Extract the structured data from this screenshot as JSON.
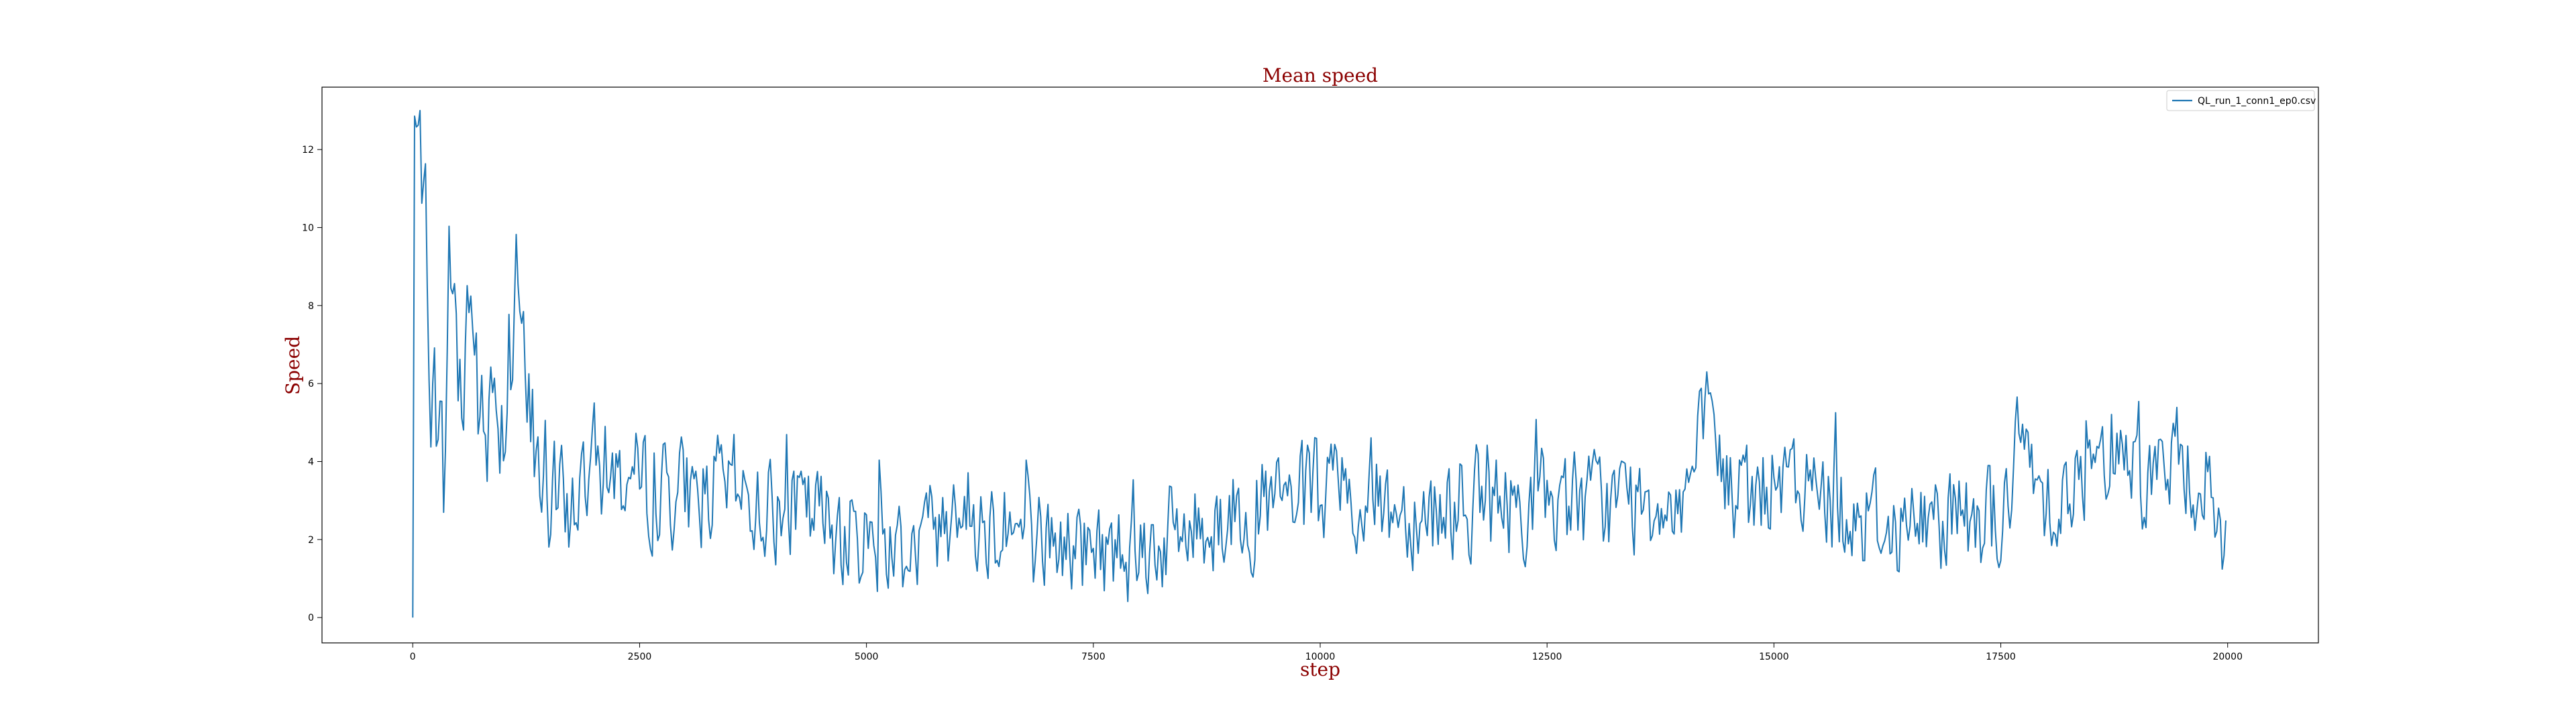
{
  "chart_data": {
    "type": "line",
    "title": "Mean speed",
    "xlabel": "step",
    "ylabel": "Speed",
    "xlim": [
      -1000,
      21000
    ],
    "ylim": [
      -0.65,
      13.6
    ],
    "xticks": [
      0,
      2500,
      5000,
      7500,
      10000,
      12500,
      15000,
      17500,
      20000
    ],
    "xtick_labels": [
      "0",
      "2500",
      "5000",
      "7500",
      "10000",
      "12500",
      "15000",
      "17500",
      "20000"
    ],
    "yticks": [
      0,
      2,
      4,
      6,
      8,
      10,
      12
    ],
    "ytick_labels": [
      "0",
      "2",
      "4",
      "6",
      "8",
      "10",
      "12"
    ],
    "grid": false,
    "legend_position": "top-right",
    "series": [
      {
        "name": "QL_run_1_conn1_ep0.csv",
        "color": "#1f77b4",
        "x_start": 0,
        "x_step": 20,
        "approx_points": 1000,
        "anchor_x": [
          0,
          20,
          60,
          100,
          150,
          200,
          260,
          300,
          360,
          400,
          430,
          480,
          520,
          560,
          600,
          650,
          700,
          750,
          800,
          900,
          1000,
          1100,
          1150,
          1200,
          1300,
          1400,
          1500,
          1700,
          2000,
          2500,
          3000,
          3500,
          4000,
          4500,
          5000,
          5500,
          6000,
          6500,
          7000,
          7500,
          8000,
          8500,
          9000,
          9500,
          10000,
          10500,
          11000,
          11500,
          12000,
          12500,
          13000,
          13500,
          14000,
          14300,
          14500,
          15000,
          15500,
          16000,
          16500,
          17000,
          17500,
          17700,
          18000,
          18500,
          18800,
          19000,
          19500,
          19800,
          20000
        ],
        "anchor_y": [
          0,
          12.8,
          12.6,
          8.9,
          8.8,
          5.8,
          5.2,
          3.6,
          3.5,
          8.8,
          9.5,
          5.0,
          6.5,
          3.8,
          9.6,
          7.2,
          5.8,
          4.2,
          3.6,
          6.0,
          4.8,
          7.2,
          9.8,
          5.5,
          4.2,
          3.5,
          3.0,
          2.5,
          3.8,
          3.2,
          3.0,
          3.1,
          2.5,
          2.3,
          1.8,
          1.6,
          2.7,
          2.1,
          1.7,
          1.5,
          1.6,
          2.0,
          2.5,
          2.6,
          2.8,
          2.7,
          2.6,
          2.7,
          2.7,
          2.8,
          2.7,
          2.8,
          3.0,
          4.8,
          2.9,
          3.1,
          3.0,
          2.4,
          2.1,
          2.5,
          2.3,
          4.2,
          3.0,
          3.2,
          4.8,
          3.4,
          3.8,
          3.0,
          1.0
        ],
        "observed_min": 0.2,
        "observed_max": 13.0
      }
    ]
  }
}
